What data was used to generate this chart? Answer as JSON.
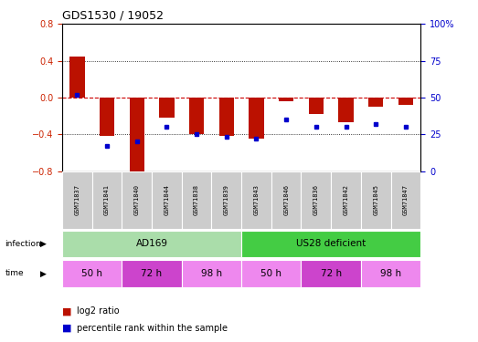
{
  "title": "GDS1530 / 19052",
  "samples": [
    "GSM71837",
    "GSM71841",
    "GSM71840",
    "GSM71844",
    "GSM71838",
    "GSM71839",
    "GSM71843",
    "GSM71846",
    "GSM71836",
    "GSM71842",
    "GSM71845",
    "GSM71847"
  ],
  "log2_ratio": [
    0.45,
    -0.42,
    -0.82,
    -0.22,
    -0.4,
    -0.42,
    -0.45,
    -0.04,
    -0.18,
    -0.27,
    -0.1,
    -0.08
  ],
  "percentile_rank": [
    52,
    17,
    20,
    30,
    25,
    23,
    22,
    35,
    30,
    30,
    32,
    30
  ],
  "bar_color": "#bb1100",
  "dot_color": "#0000cc",
  "ylim_left": [
    -0.8,
    0.8
  ],
  "ylim_right": [
    0,
    100
  ],
  "yticks_left": [
    -0.8,
    -0.4,
    0,
    0.4,
    0.8
  ],
  "yticks_right": [
    0,
    25,
    50,
    75,
    100
  ],
  "infection_groups": [
    {
      "label": "AD169",
      "start": 0,
      "end": 6,
      "color": "#aaddaa"
    },
    {
      "label": "US28 deficient",
      "start": 6,
      "end": 12,
      "color": "#44cc44"
    }
  ],
  "time_groups": [
    {
      "label": "50 h",
      "start": 0,
      "end": 2
    },
    {
      "label": "72 h",
      "start": 2,
      "end": 4
    },
    {
      "label": "98 h",
      "start": 4,
      "end": 6
    },
    {
      "label": "50 h",
      "start": 6,
      "end": 8
    },
    {
      "label": "72 h",
      "start": 8,
      "end": 10
    },
    {
      "label": "98 h",
      "start": 10,
      "end": 12
    }
  ],
  "time_color_light": "#ee88ee",
  "time_color_dark": "#cc44cc",
  "background_color": "#ffffff",
  "zero_line_color": "#cc0000",
  "sample_bg_color": "#cccccc",
  "bar_width": 0.5
}
